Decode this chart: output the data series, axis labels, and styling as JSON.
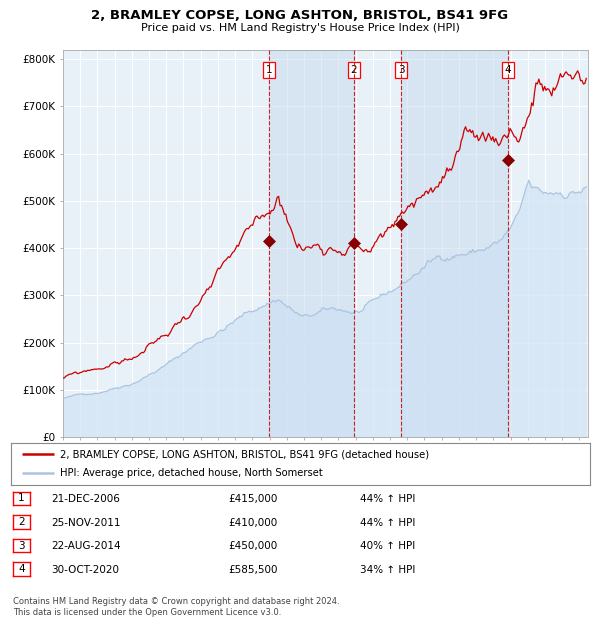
{
  "title1": "2, BRAMLEY COPSE, LONG ASHTON, BRISTOL, BS41 9FG",
  "title2": "Price paid vs. HM Land Registry's House Price Index (HPI)",
  "hpi_color": "#aac4e0",
  "hpi_fill_color": "#d0e4f5",
  "price_color": "#cc0000",
  "marker_color": "#880000",
  "background_color": "#e8f0f8",
  "purchase_dates": [
    2006.97,
    2011.9,
    2014.64,
    2020.83
  ],
  "purchase_prices": [
    415000,
    410000,
    450000,
    585500
  ],
  "purchase_labels": [
    "1",
    "2",
    "3",
    "4"
  ],
  "transactions": [
    {
      "label": "1",
      "date": "21-DEC-2006",
      "price": "£415,000",
      "pct": "44% ↑ HPI"
    },
    {
      "label": "2",
      "date": "25-NOV-2011",
      "price": "£410,000",
      "pct": "44% ↑ HPI"
    },
    {
      "label": "3",
      "date": "22-AUG-2014",
      "price": "£450,000",
      "pct": "40% ↑ HPI"
    },
    {
      "label": "4",
      "date": "30-OCT-2020",
      "price": "£585,500",
      "pct": "34% ↑ HPI"
    }
  ],
  "legend1": "2, BRAMLEY COPSE, LONG ASHTON, BRISTOL, BS41 9FG (detached house)",
  "legend2": "HPI: Average price, detached house, North Somerset",
  "footer": "Contains HM Land Registry data © Crown copyright and database right 2024.\nThis data is licensed under the Open Government Licence v3.0.",
  "ylim": [
    0,
    820000
  ],
  "xlim_start": 1995.0,
  "xlim_end": 2025.5,
  "hpi_seed": 42,
  "prop_seed": 99
}
